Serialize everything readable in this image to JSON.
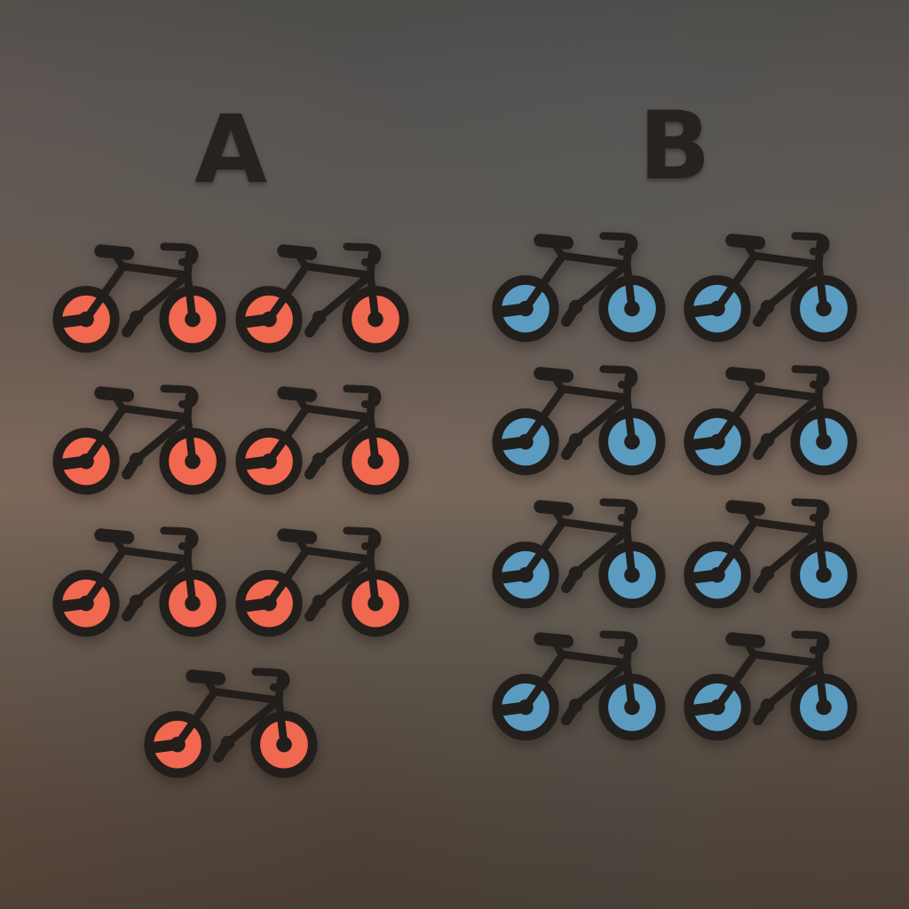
{
  "icon_style": {
    "icon": "bicycle",
    "frame_color": "#221e1b"
  },
  "groups": [
    {
      "label": "A",
      "item": "bicycle",
      "color": "#f0684f",
      "count": 7,
      "rows": [
        2,
        2,
        2,
        1
      ]
    },
    {
      "label": "B",
      "item": "bicycle",
      "color": "#5b9bc0",
      "count": 8,
      "rows": [
        2,
        2,
        2,
        2
      ]
    }
  ],
  "chart_data": {
    "type": "pictogram",
    "categories": [
      "A",
      "B"
    ],
    "values": [
      7,
      8
    ],
    "icon": "bicycle",
    "series_colors": [
      "#f0684f",
      "#5b9bc0"
    ],
    "layout_rows": {
      "A": [
        2,
        2,
        2,
        1
      ],
      "B": [
        2,
        2,
        2,
        2
      ]
    },
    "icons_per_row_max": 2,
    "legend_position": "none",
    "grid": false
  }
}
